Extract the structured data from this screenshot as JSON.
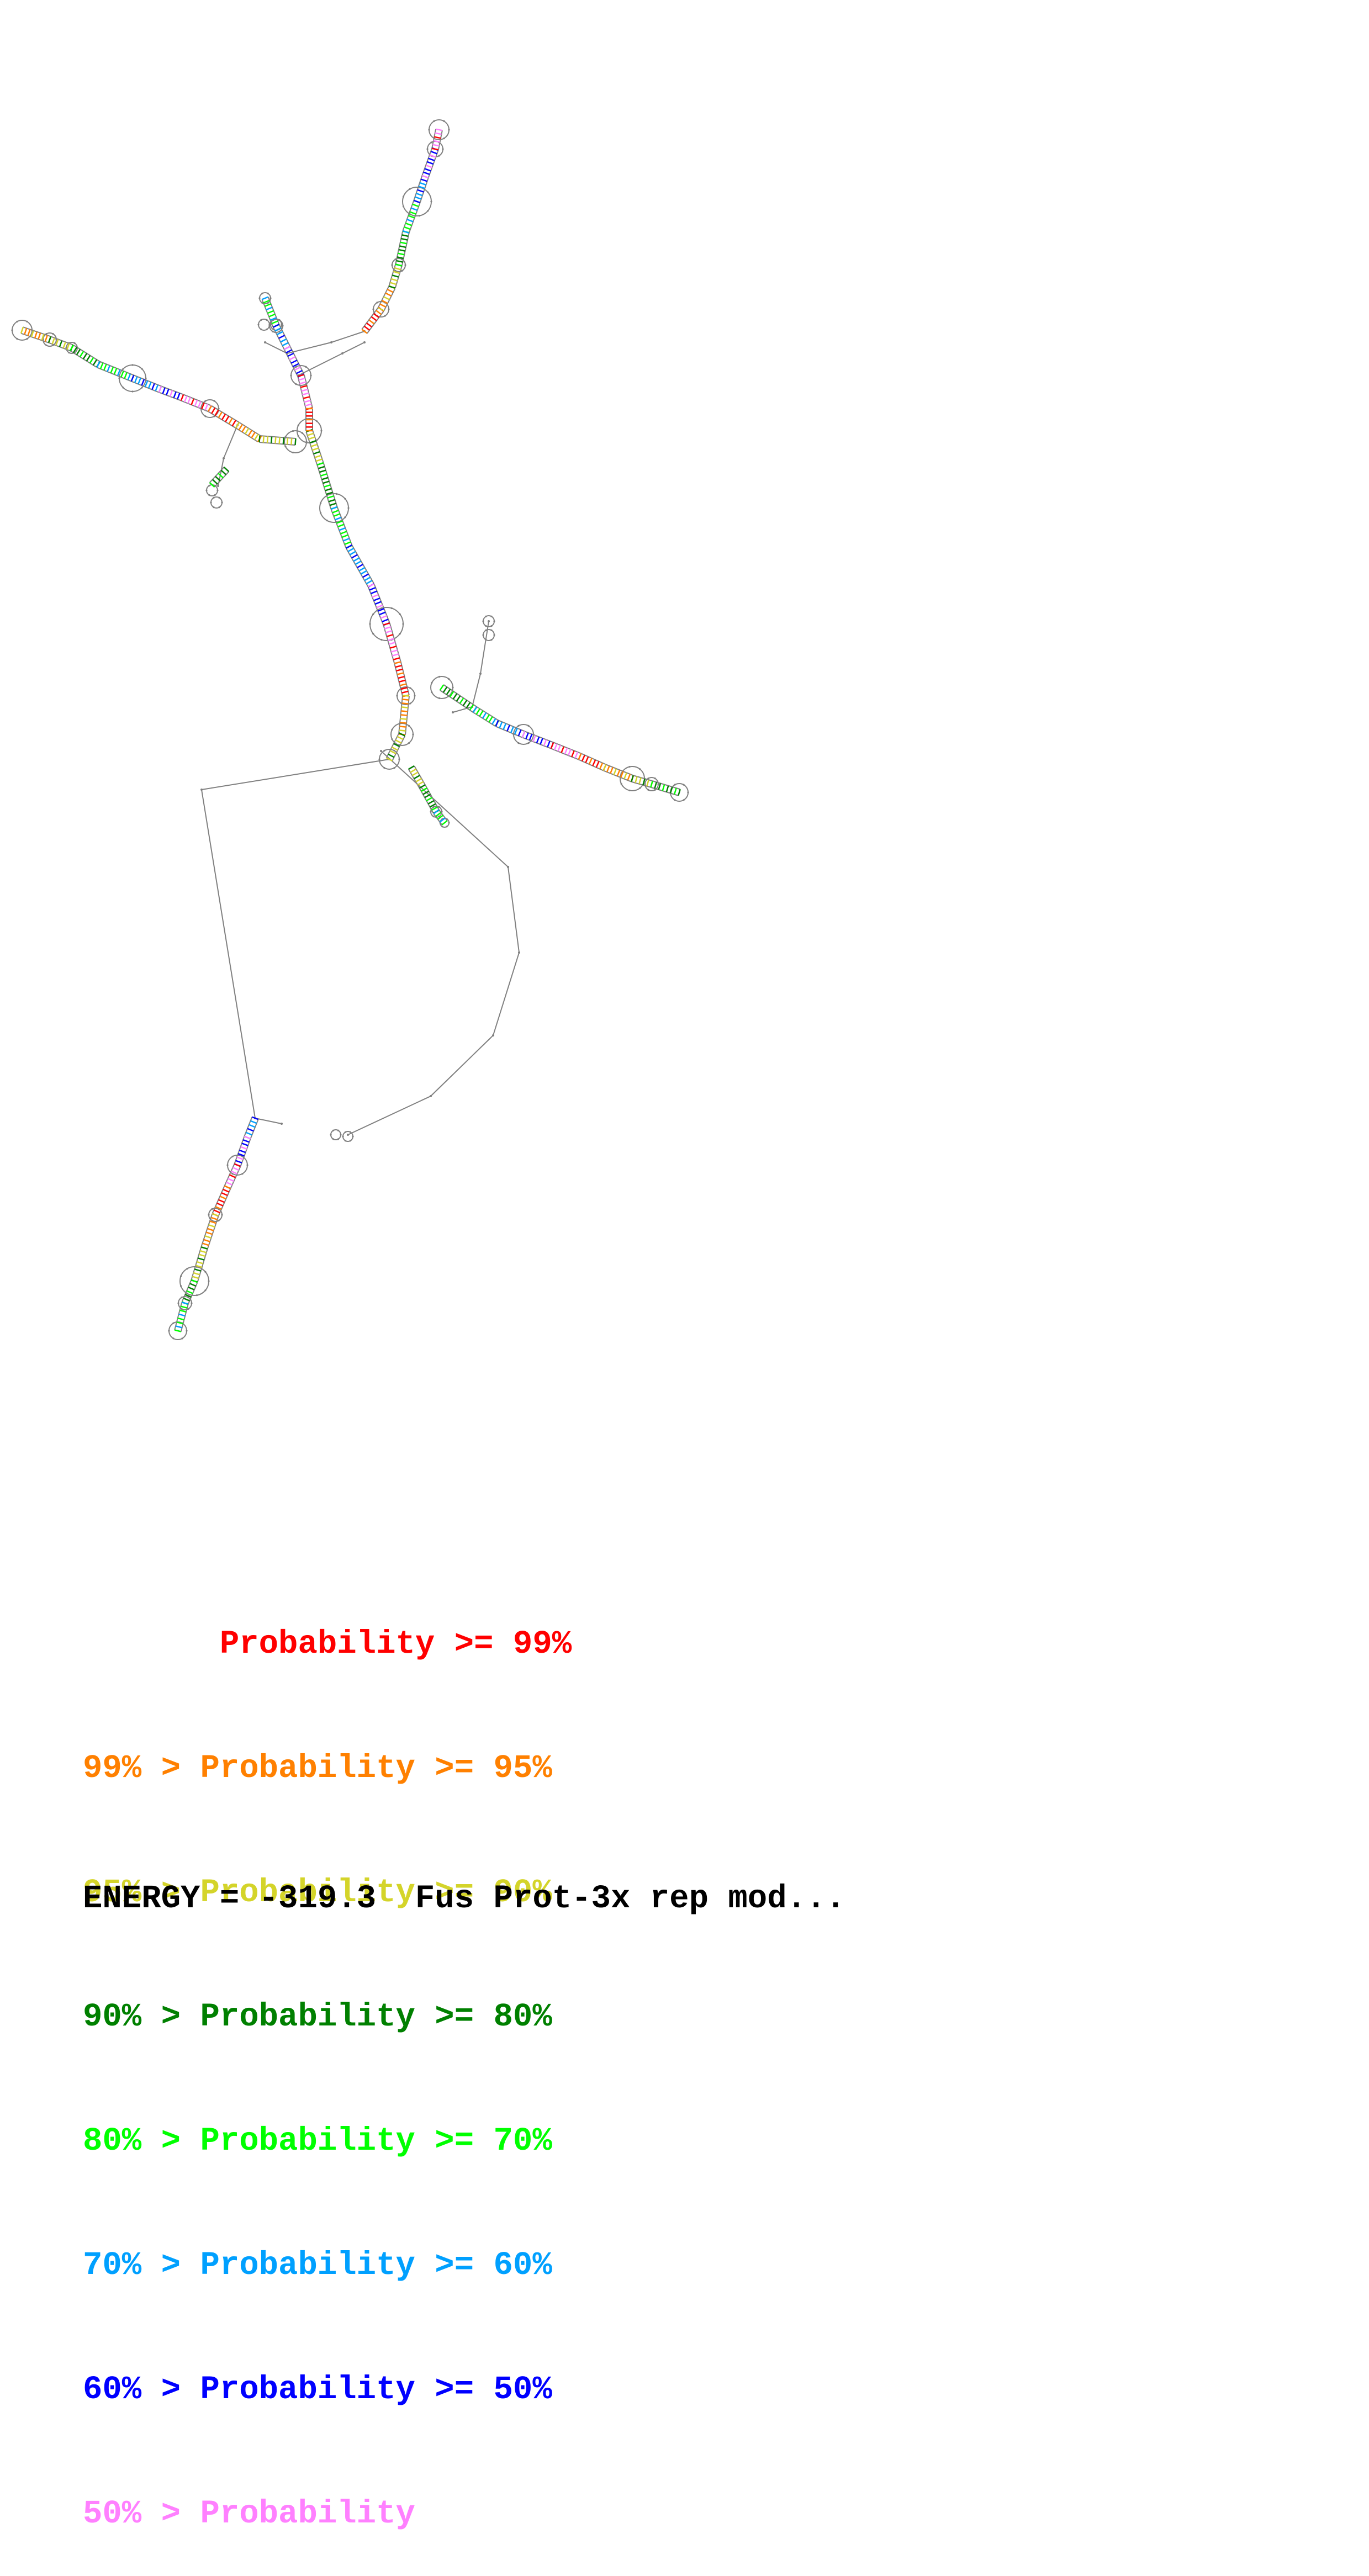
{
  "legend": {
    "rows": [
      {
        "prefix": "       ",
        "text": "Probability >= 99%",
        "color": "#ff0000"
      },
      {
        "prefix": "99% > ",
        "text": "Probability >= 95%",
        "color": "#ff8000"
      },
      {
        "prefix": "95% > ",
        "text": "Probability >= 90%",
        "color": "#d4d42a"
      },
      {
        "prefix": "90% > ",
        "text": "Probability >= 80%",
        "color": "#008000"
      },
      {
        "prefix": "80% > ",
        "text": "Probability >= 70%",
        "color": "#00ff00"
      },
      {
        "prefix": "70% > ",
        "text": "Probability >= 60%",
        "color": "#00a0ff"
      },
      {
        "prefix": "60% > ",
        "text": "Probability >= 50%",
        "color": "#0000ff"
      },
      {
        "prefix": "50% > ",
        "text": "Probability",
        "color": "#ff80ff"
      }
    ]
  },
  "footer": {
    "energy_text": "ENERGY = -319.3  Fus Prot-3x rep mod..."
  },
  "colors": {
    "backbone": "#808080",
    "pair_default": "#a0a0c0"
  }
}
